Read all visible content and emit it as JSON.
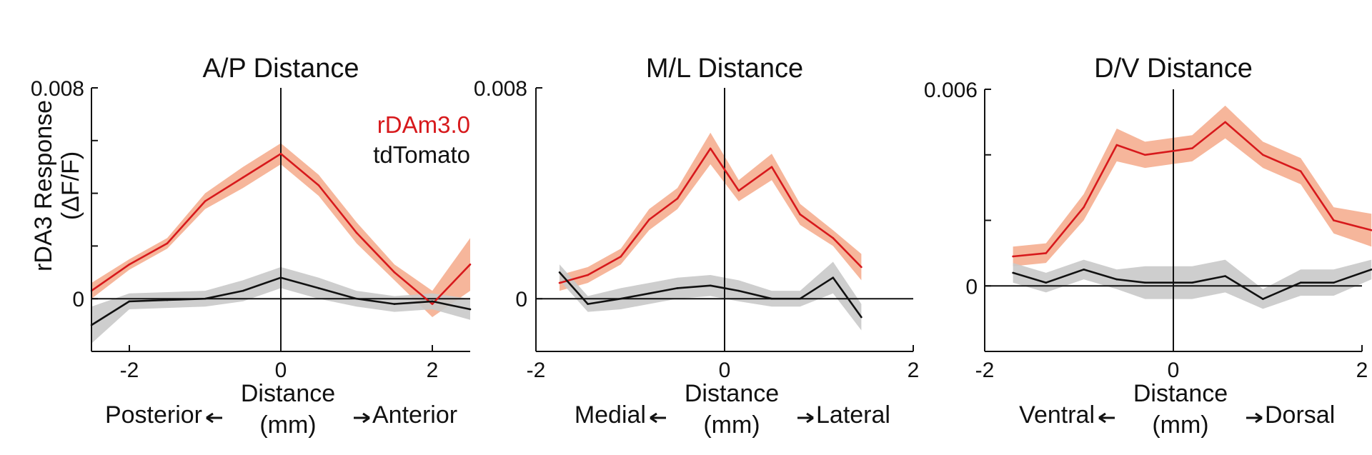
{
  "figure": {
    "ylabel_line1": "rDA3 Response",
    "ylabel_line2": "(ΔF/F)",
    "legend": [
      {
        "label": "rDAm3.0",
        "color": "#d7191c"
      },
      {
        "label": "tdTomato",
        "color": "#111111"
      }
    ],
    "colors": {
      "red_line": "#d7191c",
      "red_band": "#f4a98a",
      "black_line": "#111111",
      "gray_band": "#c9c9c9"
    }
  },
  "chart_data": [
    {
      "type": "line",
      "title": "A/P Distance",
      "xlabel_line1": "Distance",
      "xlabel_line2": "(mm)",
      "left_direction": "Posterior",
      "right_direction": "Anterior",
      "xlim": [
        -2.5,
        2.5
      ],
      "ylim": [
        -0.002,
        0.008
      ],
      "x_ticks": [
        -2,
        0,
        2
      ],
      "x_tick_labels": [
        "-2",
        "0",
        "2"
      ],
      "y_ticks": [
        0,
        0.002,
        0.004,
        0.006,
        0.008
      ],
      "y_tick_labels": [
        "0",
        "",
        "",
        "",
        "0.008"
      ],
      "series": [
        {
          "name": "rDAm3.0",
          "x": [
            -2.5,
            -2,
            -1.5,
            -1,
            -0.5,
            0,
            0.5,
            1,
            1.5,
            2,
            2.5
          ],
          "values": [
            0.0003,
            0.0013,
            0.0021,
            0.0037,
            0.0046,
            0.0055,
            0.0043,
            0.0025,
            0.001,
            -0.0002,
            0.0013
          ],
          "err": [
            0.0003,
            0.0002,
            0.0002,
            0.0003,
            0.0004,
            0.0004,
            0.0004,
            0.0004,
            0.0003,
            0.0005,
            0.001
          ]
        },
        {
          "name": "tdTomato",
          "x": [
            -2.5,
            -2,
            -1.5,
            -1,
            -0.5,
            0,
            0.5,
            1,
            1.5,
            2,
            2.5
          ],
          "values": [
            -0.001,
            -0.0001,
            -5e-05,
            0,
            0.0003,
            0.0008,
            0.0004,
            0,
            -0.0002,
            -0.0001,
            -0.0004
          ],
          "err": [
            0.0007,
            0.0003,
            0.0003,
            0.0003,
            0.0004,
            0.0004,
            0.0004,
            0.0003,
            0.0003,
            0.0003,
            0.0004
          ]
        }
      ]
    },
    {
      "type": "line",
      "title": "M/L Distance",
      "xlabel_line1": "Distance",
      "xlabel_line2": "(mm)",
      "left_direction": "Medial",
      "right_direction": "Lateral",
      "xlim": [
        -2,
        2
      ],
      "ylim": [
        -0.002,
        0.008
      ],
      "x_ticks": [
        -2,
        0,
        2
      ],
      "x_tick_labels": [
        "-2",
        "0",
        "2"
      ],
      "y_ticks": [
        0,
        0.008
      ],
      "y_tick_labels": [
        "0",
        "0.008"
      ],
      "series": [
        {
          "name": "rDAm3.0",
          "x": [
            -1.75,
            -1.45,
            -1.1,
            -0.8,
            -0.5,
            -0.15,
            0.15,
            0.5,
            0.8,
            1.15,
            1.45
          ],
          "values": [
            0.0006,
            0.0009,
            0.0016,
            0.003,
            0.0038,
            0.0057,
            0.0041,
            0.005,
            0.0032,
            0.0023,
            0.0012
          ],
          "err": [
            0.0003,
            0.0003,
            0.0003,
            0.0004,
            0.0004,
            0.0006,
            0.0004,
            0.0005,
            0.0004,
            0.0003,
            0.0005
          ]
        },
        {
          "name": "tdTomato",
          "x": [
            -1.75,
            -1.45,
            -1.1,
            -0.8,
            -0.5,
            -0.15,
            0.15,
            0.5,
            0.8,
            1.15,
            1.45
          ],
          "values": [
            0.001,
            -0.0002,
            0,
            0.0002,
            0.0004,
            0.0005,
            0.0003,
            0,
            0,
            0.0008,
            -0.0007
          ],
          "err": [
            0.0003,
            0.0003,
            0.0004,
            0.0004,
            0.0004,
            0.0004,
            0.0004,
            0.0003,
            0.0003,
            0.0006,
            0.0005
          ]
        }
      ]
    },
    {
      "type": "line",
      "title": "D/V Distance",
      "xlabel_line1": "Distance",
      "xlabel_line2": "(mm)",
      "left_direction": "Ventral",
      "right_direction": "Dorsal",
      "xlim": [
        -2,
        2
      ],
      "ylim": [
        -0.002,
        0.006
      ],
      "x_ticks": [
        -2,
        0,
        2
      ],
      "x_tick_labels": [
        "-2",
        "0",
        "2"
      ],
      "y_ticks": [
        0,
        0.002,
        0.004,
        0.006
      ],
      "y_tick_labels": [
        "0",
        "",
        "",
        "0.006"
      ],
      "series": [
        {
          "name": "rDAm3.0",
          "x": [
            -1.7,
            -1.35,
            -0.95,
            -0.6,
            -0.3,
            0.2,
            0.55,
            0.95,
            1.35,
            1.7,
            2.1
          ],
          "values": [
            0.0009,
            0.001,
            0.0024,
            0.0043,
            0.004,
            0.0042,
            0.005,
            0.004,
            0.0035,
            0.002,
            0.0017
          ],
          "err": [
            0.0003,
            0.0003,
            0.0004,
            0.0005,
            0.0004,
            0.0004,
            0.0005,
            0.0004,
            0.0004,
            0.0004,
            0.0005
          ]
        },
        {
          "name": "tdTomato",
          "x": [
            -1.7,
            -1.35,
            -0.95,
            -0.6,
            -0.3,
            0.2,
            0.55,
            0.95,
            1.35,
            1.7,
            2.1
          ],
          "values": [
            0.0004,
            0.0001,
            0.0005,
            0.0002,
            0.0001,
            0.0001,
            0.0003,
            -0.0004,
            0.0001,
            0.0001,
            0.0005
          ],
          "err": [
            0.0003,
            0.0003,
            0.0003,
            0.0003,
            0.0005,
            0.0005,
            0.0005,
            0.0003,
            0.0004,
            0.0004,
            0.0003
          ]
        }
      ]
    }
  ]
}
